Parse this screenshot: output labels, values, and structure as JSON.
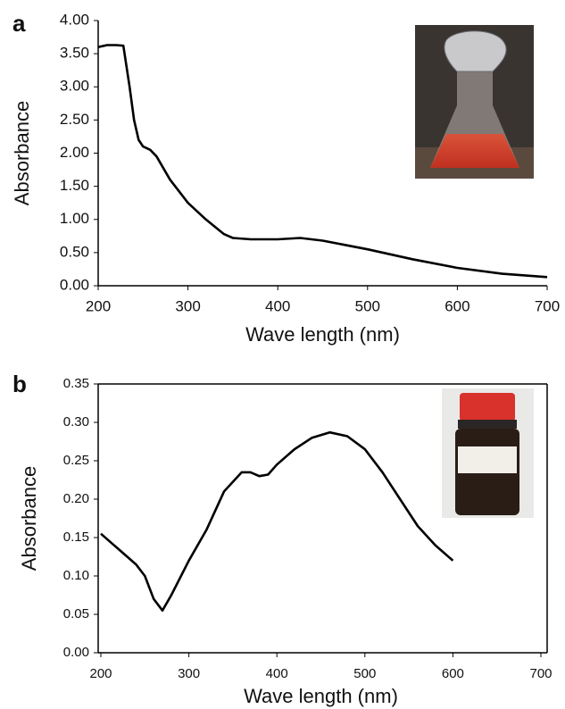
{
  "chart_data": [
    {
      "type": "line",
      "panel": "a",
      "ylabel": "Absorbance",
      "xlabel": "Wave length (nm)",
      "x": [
        200,
        210,
        220,
        228,
        235,
        240,
        245,
        250,
        258,
        265,
        280,
        300,
        320,
        340,
        350,
        370,
        400,
        425,
        450,
        500,
        550,
        600,
        650,
        700
      ],
      "values": [
        3.6,
        3.63,
        3.63,
        3.62,
        3.0,
        2.5,
        2.2,
        2.1,
        2.05,
        1.95,
        1.6,
        1.25,
        1.0,
        0.78,
        0.72,
        0.7,
        0.7,
        0.72,
        0.68,
        0.55,
        0.4,
        0.27,
        0.18,
        0.13
      ],
      "color": "#000000",
      "xlim": [
        200,
        700
      ],
      "ylim": [
        0,
        4
      ],
      "xticks": [
        200,
        300,
        400,
        500,
        600,
        700
      ],
      "yticks": [
        {
          "value": 0,
          "label": "0.00"
        },
        {
          "value": 0.5,
          "label": "0.50"
        },
        {
          "value": 1,
          "label": "1.00"
        },
        {
          "value": 1.5,
          "label": "1.50"
        },
        {
          "value": 2,
          "label": "2.00"
        },
        {
          "value": 2.5,
          "label": "2.50"
        },
        {
          "value": 3,
          "label": "3.00"
        },
        {
          "value": 3.5,
          "label": "3.50"
        },
        {
          "value": 4,
          "label": "4.00"
        }
      ]
    },
    {
      "type": "line",
      "panel": "b",
      "ylabel": "Absorbance",
      "xlabel": "Wave length (nm)",
      "x": [
        200,
        220,
        240,
        250,
        260,
        270,
        280,
        300,
        320,
        340,
        360,
        370,
        380,
        390,
        400,
        420,
        440,
        460,
        480,
        500,
        520,
        540,
        560,
        580,
        600
      ],
      "values": [
        0.155,
        0.135,
        0.115,
        0.1,
        0.07,
        0.055,
        0.075,
        0.12,
        0.16,
        0.21,
        0.235,
        0.235,
        0.23,
        0.232,
        0.245,
        0.265,
        0.28,
        0.287,
        0.282,
        0.265,
        0.235,
        0.2,
        0.165,
        0.14,
        0.12
      ],
      "color": "#000000",
      "xlim": [
        200,
        700
      ],
      "ylim": [
        0,
        0.35
      ],
      "xticks": [
        200,
        300,
        400,
        500,
        600,
        700
      ],
      "yticks": [
        {
          "value": 0,
          "label": "0.00"
        },
        {
          "value": 0.05,
          "label": "0.05"
        },
        {
          "value": 0.1,
          "label": "0.10"
        },
        {
          "value": 0.15,
          "label": "0.15"
        },
        {
          "value": 0.2,
          "label": "0.20"
        },
        {
          "value": 0.25,
          "label": "0.25"
        },
        {
          "value": 0.3,
          "label": "0.30"
        },
        {
          "value": 0.35,
          "label": "0.35"
        }
      ]
    }
  ]
}
